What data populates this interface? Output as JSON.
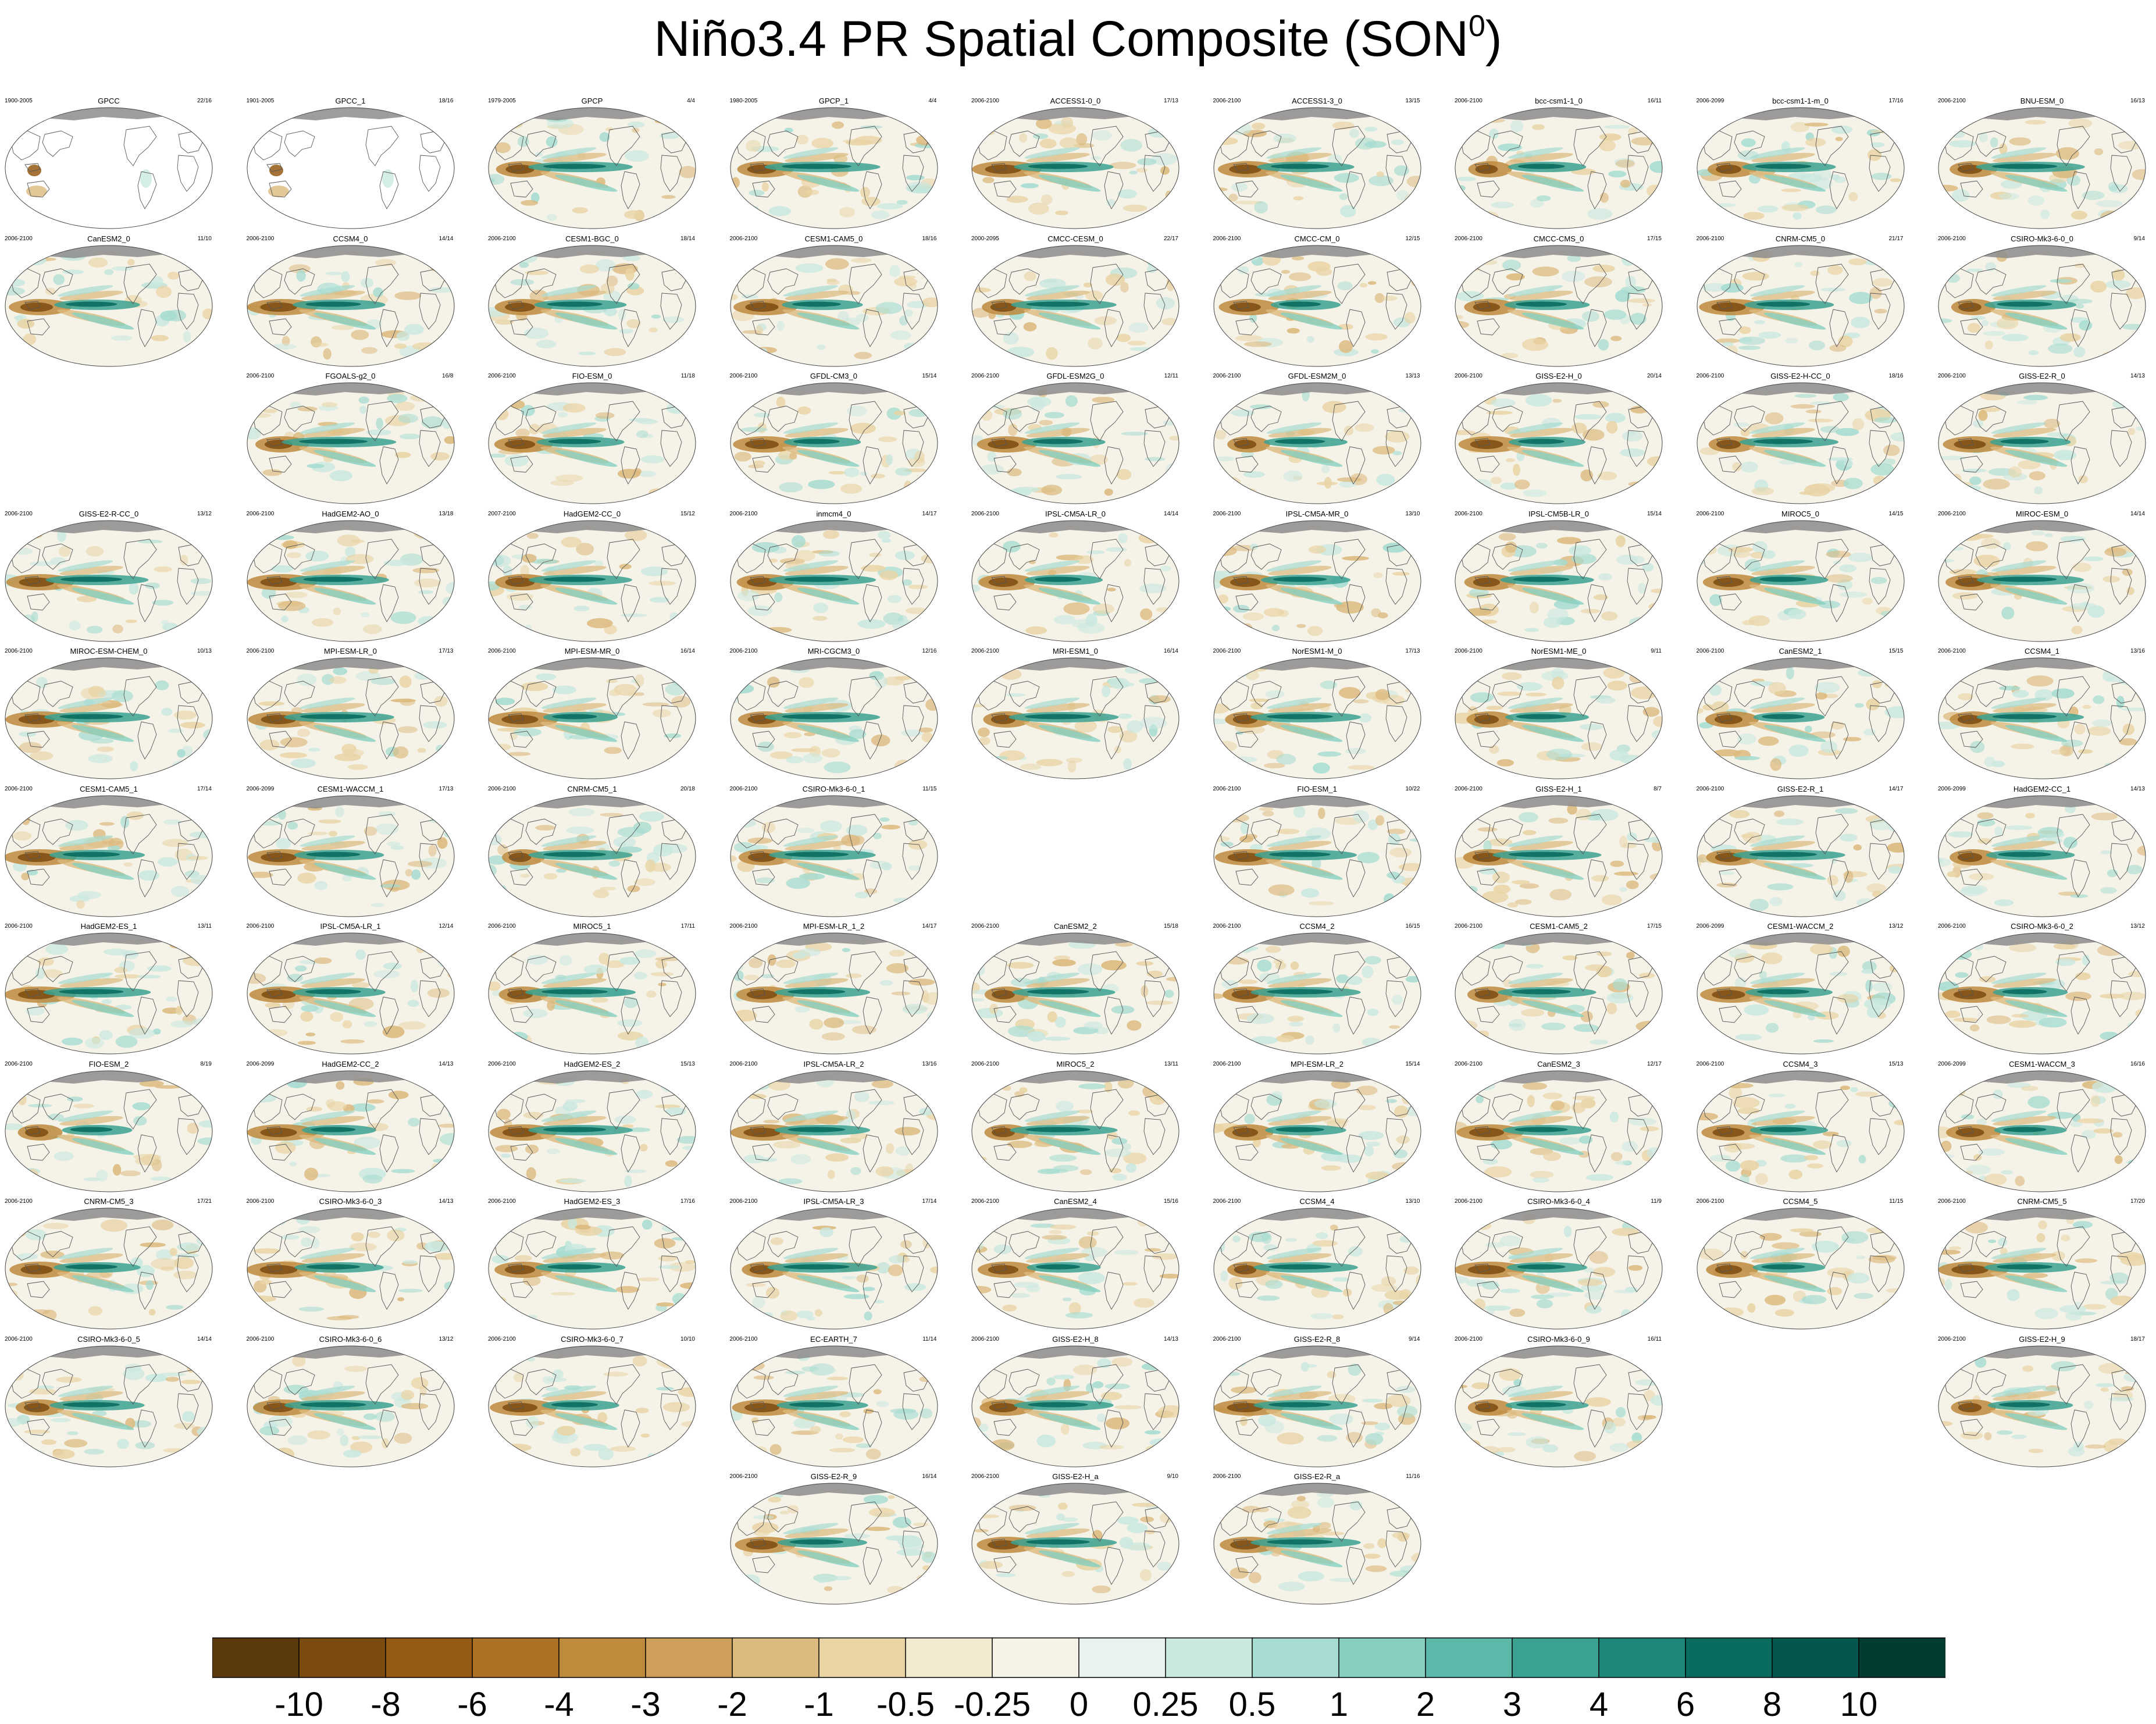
{
  "title": "Niño3.4 PR Spatial Composite (SON",
  "title_sup": "0",
  "title_close": ")",
  "chart_data": {
    "type": "heatmap",
    "title": "Niño3.4 PR Spatial Composite (SON0)",
    "layout": {
      "columns": 9,
      "rows": 11
    },
    "colorbar": {
      "tick_labels": [
        "-10",
        "-8",
        "-6",
        "-4",
        "-3",
        "-2",
        "-1",
        "-0.5",
        "-0.25",
        "0",
        "0.25",
        "0.5",
        "1",
        "2",
        "3",
        "4",
        "6",
        "8",
        "10"
      ],
      "colors": [
        "#5b3a0d",
        "#7a4a0f",
        "#955b14",
        "#ac7124",
        "#be8a3c",
        "#ce9f58",
        "#dcb97d",
        "#e9d4a5",
        "#f3e9cf",
        "#f5f2e8",
        "#e9f3ee",
        "#c9e8e0",
        "#a6dcd1",
        "#86cfc1",
        "#5cb9a9",
        "#3ba292",
        "#1d877a",
        "#0a6b5f",
        "#03574c",
        "#023b31"
      ]
    },
    "panels": [
      {
        "name": "GPCC",
        "left": "1900-2005",
        "right": "22/16",
        "row": 0,
        "col": 0,
        "sparse": true
      },
      {
        "name": "GPCC_1",
        "left": "1901-2005",
        "right": "18/16",
        "row": 0,
        "col": 1,
        "sparse": true
      },
      {
        "name": "GPCP",
        "left": "1979-2005",
        "right": "4/4",
        "row": 0,
        "col": 2
      },
      {
        "name": "GPCP_1",
        "left": "1980-2005",
        "right": "4/4",
        "row": 0,
        "col": 3
      },
      {
        "name": "ACCESS1-0_0",
        "left": "2006-2100",
        "right": "17/13",
        "row": 0,
        "col": 4
      },
      {
        "name": "ACCESS1-3_0",
        "left": "2006-2100",
        "right": "13/15",
        "row": 0,
        "col": 5
      },
      {
        "name": "bcc-csm1-1_0",
        "left": "2006-2100",
        "right": "16/11",
        "row": 0,
        "col": 6
      },
      {
        "name": "bcc-csm1-1-m_0",
        "left": "2006-2099",
        "right": "17/16",
        "row": 0,
        "col": 7
      },
      {
        "name": "BNU-ESM_0",
        "left": "2006-2100",
        "right": "16/13",
        "row": 0,
        "col": 8
      },
      {
        "name": "CanESM2_0",
        "left": "2006-2100",
        "right": "11/10",
        "row": 1,
        "col": 0
      },
      {
        "name": "CCSM4_0",
        "left": "2006-2100",
        "right": "14/14",
        "row": 1,
        "col": 1
      },
      {
        "name": "CESM1-BGC_0",
        "left": "2006-2100",
        "right": "18/14",
        "row": 1,
        "col": 2
      },
      {
        "name": "CESM1-CAM5_0",
        "left": "2006-2100",
        "right": "18/16",
        "row": 1,
        "col": 3
      },
      {
        "name": "CMCC-CESM_0",
        "left": "2000-2095",
        "right": "22/17",
        "row": 1,
        "col": 4
      },
      {
        "name": "CMCC-CM_0",
        "left": "2006-2100",
        "right": "12/15",
        "row": 1,
        "col": 5
      },
      {
        "name": "CMCC-CMS_0",
        "left": "2006-2100",
        "right": "17/15",
        "row": 1,
        "col": 6
      },
      {
        "name": "CNRM-CM5_0",
        "left": "2006-2100",
        "right": "21/17",
        "row": 1,
        "col": 7
      },
      {
        "name": "CSIRO-Mk3-6-0_0",
        "left": "2006-2100",
        "right": "9/14",
        "row": 1,
        "col": 8
      },
      {
        "name": "FGOALS-g2_0",
        "left": "2006-2100",
        "right": "16/8",
        "row": 2,
        "col": 1
      },
      {
        "name": "FIO-ESM_0",
        "left": "2006-2100",
        "right": "11/18",
        "row": 2,
        "col": 2
      },
      {
        "name": "GFDL-CM3_0",
        "left": "2006-2100",
        "right": "15/14",
        "row": 2,
        "col": 3
      },
      {
        "name": "GFDL-ESM2G_0",
        "left": "2006-2100",
        "right": "12/11",
        "row": 2,
        "col": 4
      },
      {
        "name": "GFDL-ESM2M_0",
        "left": "2006-2100",
        "right": "13/13",
        "row": 2,
        "col": 5
      },
      {
        "name": "GISS-E2-H_0",
        "left": "2006-2100",
        "right": "20/14",
        "row": 2,
        "col": 6
      },
      {
        "name": "GISS-E2-H-CC_0",
        "left": "2006-2100",
        "right": "18/16",
        "row": 2,
        "col": 7
      },
      {
        "name": "GISS-E2-R_0",
        "left": "2006-2100",
        "right": "14/13",
        "row": 2,
        "col": 8
      },
      {
        "name": "GISS-E2-R-CC_0",
        "left": "2006-2100",
        "right": "13/12",
        "row": 3,
        "col": 0
      },
      {
        "name": "HadGEM2-AO_0",
        "left": "2006-2100",
        "right": "13/18",
        "row": 3,
        "col": 1
      },
      {
        "name": "HadGEM2-CC_0",
        "left": "2007-2100",
        "right": "15/12",
        "row": 3,
        "col": 2
      },
      {
        "name": "inmcm4_0",
        "left": "2006-2100",
        "right": "14/17",
        "row": 3,
        "col": 3
      },
      {
        "name": "IPSL-CM5A-LR_0",
        "left": "2006-2100",
        "right": "14/14",
        "row": 3,
        "col": 4
      },
      {
        "name": "IPSL-CM5A-MR_0",
        "left": "2006-2100",
        "right": "13/10",
        "row": 3,
        "col": 5
      },
      {
        "name": "IPSL-CM5B-LR_0",
        "left": "2006-2100",
        "right": "15/14",
        "row": 3,
        "col": 6
      },
      {
        "name": "MIROC5_0",
        "left": "2006-2100",
        "right": "14/15",
        "row": 3,
        "col": 7
      },
      {
        "name": "MIROC-ESM_0",
        "left": "2006-2100",
        "right": "14/14",
        "row": 3,
        "col": 8
      },
      {
        "name": "MIROC-ESM-CHEM_0",
        "left": "2006-2100",
        "right": "10/13",
        "row": 4,
        "col": 0
      },
      {
        "name": "MPI-ESM-LR_0",
        "left": "2006-2100",
        "right": "17/13",
        "row": 4,
        "col": 1
      },
      {
        "name": "MPI-ESM-MR_0",
        "left": "2006-2100",
        "right": "16/14",
        "row": 4,
        "col": 2
      },
      {
        "name": "MRI-CGCM3_0",
        "left": "2006-2100",
        "right": "12/16",
        "row": 4,
        "col": 3
      },
      {
        "name": "MRI-ESM1_0",
        "left": "2006-2100",
        "right": "16/14",
        "row": 4,
        "col": 4
      },
      {
        "name": "NorESM1-M_0",
        "left": "2006-2100",
        "right": "17/13",
        "row": 4,
        "col": 5
      },
      {
        "name": "NorESM1-ME_0",
        "left": "2006-2100",
        "right": "9/11",
        "row": 4,
        "col": 6
      },
      {
        "name": "CanESM2_1",
        "left": "2006-2100",
        "right": "15/15",
        "row": 4,
        "col": 7
      },
      {
        "name": "CCSM4_1",
        "left": "2006-2100",
        "right": "13/16",
        "row": 4,
        "col": 8
      },
      {
        "name": "CESM1-CAM5_1",
        "left": "2006-2100",
        "right": "17/14",
        "row": 5,
        "col": 0
      },
      {
        "name": "CESM1-WACCM_1",
        "left": "2006-2099",
        "right": "17/13",
        "row": 5,
        "col": 1
      },
      {
        "name": "CNRM-CM5_1",
        "left": "2006-2100",
        "right": "20/18",
        "row": 5,
        "col": 2
      },
      {
        "name": "CSIRO-Mk3-6-0_1",
        "left": "2006-2100",
        "right": "11/15",
        "row": 5,
        "col": 3
      },
      {
        "name": "FIO-ESM_1",
        "left": "2006-2100",
        "right": "10/22",
        "row": 5,
        "col": 5
      },
      {
        "name": "GISS-E2-H_1",
        "left": "2006-2100",
        "right": "8/7",
        "row": 5,
        "col": 6
      },
      {
        "name": "GISS-E2-R_1",
        "left": "2006-2100",
        "right": "14/17",
        "row": 5,
        "col": 7
      },
      {
        "name": "HadGEM2-CC_1",
        "left": "2006-2099",
        "right": "14/13",
        "row": 5,
        "col": 8
      },
      {
        "name": "HadGEM2-ES_1",
        "left": "2006-2100",
        "right": "13/11",
        "row": 6,
        "col": 0
      },
      {
        "name": "IPSL-CM5A-LR_1",
        "left": "2006-2100",
        "right": "12/14",
        "row": 6,
        "col": 1
      },
      {
        "name": "MIROC5_1",
        "left": "2006-2100",
        "right": "17/11",
        "row": 6,
        "col": 2
      },
      {
        "name": "MPI-ESM-LR_1_2",
        "left": "2006-2100",
        "right": "14/17",
        "row": 6,
        "col": 3
      },
      {
        "name": "CanESM2_2",
        "left": "2006-2100",
        "right": "15/18",
        "row": 6,
        "col": 4
      },
      {
        "name": "CCSM4_2",
        "left": "2006-2100",
        "right": "16/15",
        "row": 6,
        "col": 5
      },
      {
        "name": "CESM1-CAM5_2",
        "left": "2006-2100",
        "right": "17/15",
        "row": 6,
        "col": 6
      },
      {
        "name": "CESM1-WACCM_2",
        "left": "2006-2099",
        "right": "13/12",
        "row": 6,
        "col": 7
      },
      {
        "name": "CSIRO-Mk3-6-0_2",
        "left": "2006-2100",
        "right": "13/12",
        "row": 6,
        "col": 8
      },
      {
        "name": "FIO-ESM_2",
        "left": "2006-2100",
        "right": "8/19",
        "row": 7,
        "col": 0
      },
      {
        "name": "HadGEM2-CC_2",
        "left": "2006-2099",
        "right": "14/13",
        "row": 7,
        "col": 1
      },
      {
        "name": "HadGEM2-ES_2",
        "left": "2006-2100",
        "right": "15/13",
        "row": 7,
        "col": 2
      },
      {
        "name": "IPSL-CM5A-LR_2",
        "left": "2006-2100",
        "right": "13/16",
        "row": 7,
        "col": 3
      },
      {
        "name": "MIROC5_2",
        "left": "2006-2100",
        "right": "13/11",
        "row": 7,
        "col": 4
      },
      {
        "name": "MPI-ESM-LR_2",
        "left": "2006-2100",
        "right": "15/14",
        "row": 7,
        "col": 5
      },
      {
        "name": "CanESM2_3",
        "left": "2006-2100",
        "right": "12/17",
        "row": 7,
        "col": 6
      },
      {
        "name": "CCSM4_3",
        "left": "2006-2100",
        "right": "15/13",
        "row": 7,
        "col": 7
      },
      {
        "name": "CESM1-WACCM_3",
        "left": "2006-2099",
        "right": "16/16",
        "row": 7,
        "col": 8
      },
      {
        "name": "CNRM-CM5_3",
        "left": "2006-2100",
        "right": "17/21",
        "row": 8,
        "col": 0
      },
      {
        "name": "CSIRO-Mk3-6-0_3",
        "left": "2006-2100",
        "right": "14/13",
        "row": 8,
        "col": 1
      },
      {
        "name": "HadGEM2-ES_3",
        "left": "2006-2100",
        "right": "17/16",
        "row": 8,
        "col": 2
      },
      {
        "name": "IPSL-CM5A-LR_3",
        "left": "2006-2100",
        "right": "17/14",
        "row": 8,
        "col": 3
      },
      {
        "name": "CanESM2_4",
        "left": "2006-2100",
        "right": "15/16",
        "row": 8,
        "col": 4
      },
      {
        "name": "CCSM4_4",
        "left": "2006-2100",
        "right": "13/10",
        "row": 8,
        "col": 5
      },
      {
        "name": "CSIRO-Mk3-6-0_4",
        "left": "2006-2100",
        "right": "11/9",
        "row": 8,
        "col": 6
      },
      {
        "name": "CCSM4_5",
        "left": "2006-2100",
        "right": "11/15",
        "row": 8,
        "col": 7
      },
      {
        "name": "CNRM-CM5_5",
        "left": "2006-2100",
        "right": "17/20",
        "row": 8,
        "col": 8
      },
      {
        "name": "CSIRO-Mk3-6-0_5",
        "left": "2006-2100",
        "right": "14/14",
        "row": 9,
        "col": 0
      },
      {
        "name": "CSIRO-Mk3-6-0_6",
        "left": "2006-2100",
        "right": "13/12",
        "row": 9,
        "col": 1
      },
      {
        "name": "CSIRO-Mk3-6-0_7",
        "left": "2006-2100",
        "right": "10/10",
        "row": 9,
        "col": 2
      },
      {
        "name": "EC-EARTH_7",
        "left": "2006-2100",
        "right": "11/14",
        "row": 9,
        "col": 3
      },
      {
        "name": "GISS-E2-H_8",
        "left": "2006-2100",
        "right": "14/13",
        "row": 9,
        "col": 4
      },
      {
        "name": "GISS-E2-R_8",
        "left": "2006-2100",
        "right": "9/14",
        "row": 9,
        "col": 5
      },
      {
        "name": "CSIRO-Mk3-6-0_9",
        "left": "2006-2100",
        "right": "16/11",
        "row": 9,
        "col": 6
      },
      {
        "name": "GISS-E2-H_9",
        "left": "2006-2100",
        "right": "18/17",
        "row": 9,
        "col": 8
      },
      {
        "name": "GISS-E2-R_9",
        "left": "2006-2100",
        "right": "16/14",
        "row": 10,
        "col": 3
      },
      {
        "name": "GISS-E2-H_a",
        "left": "2006-2100",
        "right": "9/10",
        "row": 10,
        "col": 4
      },
      {
        "name": "GISS-E2-R_a",
        "left": "2006-2100",
        "right": "11/16",
        "row": 10,
        "col": 5
      }
    ]
  }
}
